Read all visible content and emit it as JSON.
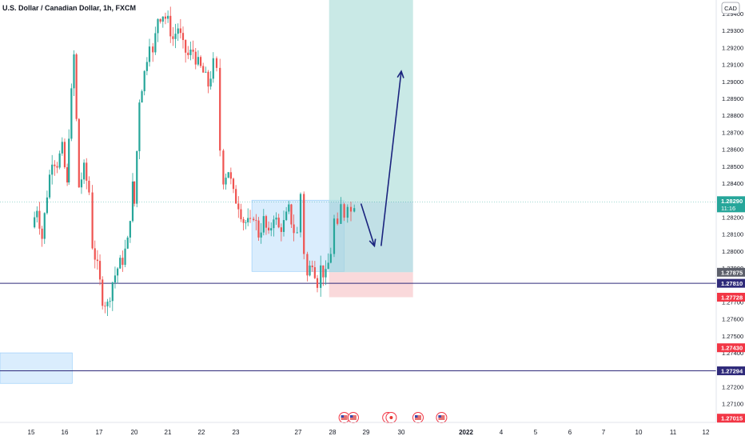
{
  "chart_data": {
    "type": "candlestick",
    "title": "U.S. Dollar / Canadian Dollar, 1h, FXCM",
    "currency": "CAD",
    "y_axis": {
      "ticks": [
        "1.29400",
        "1.29300",
        "1.29200",
        "1.29100",
        "1.29000",
        "1.28900",
        "1.28800",
        "1.28700",
        "1.28600",
        "1.28500",
        "1.28400",
        "1.28300",
        "1.28200",
        "1.28100",
        "1.28000",
        "1.27900",
        "1.27800",
        "1.27700",
        "1.27600",
        "1.27500",
        "1.27400",
        "1.27300",
        "1.27200",
        "1.27100",
        "1.27000"
      ],
      "range": [
        1.2699,
        1.2948
      ]
    },
    "x_axis": {
      "labels": [
        "15",
        "16",
        "17",
        "20",
        "21",
        "22",
        "23",
        "27",
        "28",
        "29",
        "30",
        "2022",
        "4",
        "5",
        "6",
        "7",
        "10",
        "11",
        "12"
      ],
      "bold": [
        "2022"
      ]
    },
    "price_labels": [
      {
        "value": 1.2829,
        "text": "1.28290",
        "sub": "11:16",
        "color": "#26a69a"
      },
      {
        "value": 1.27875,
        "text": "1.27875",
        "color": "#5d606b"
      },
      {
        "value": 1.2781,
        "text": "1.27810",
        "color": "#2f2a7a"
      },
      {
        "value": 1.27728,
        "text": "1.27728",
        "color": "#f23645"
      },
      {
        "value": 1.2743,
        "text": "1.27430",
        "color": "#f23645"
      },
      {
        "value": 1.27294,
        "text": "1.27294",
        "color": "#2f2a7a"
      },
      {
        "value": 1.27015,
        "text": "1.27015",
        "color": "#f23645"
      }
    ],
    "horizontal_lines": [
      {
        "value": 1.2781,
        "color": "#2f2a7a"
      },
      {
        "value": 1.27294,
        "color": "#2f2a7a"
      }
    ],
    "zones": [
      {
        "kind": "support",
        "x_from": 0,
        "x_to": 1.2,
        "y_from": 1.2722,
        "y_to": 1.274,
        "color": "#bbdefb"
      },
      {
        "kind": "range",
        "x_from": 6.55,
        "x_to": 9.3,
        "y_from": 1.2788,
        "y_to": 1.283,
        "color": "#bbdefb"
      },
      {
        "kind": "target",
        "x_from": 8.85,
        "x_to": 11.35,
        "y_from": 1.2829,
        "y_to": 1.2948,
        "color": "#b2dfdb"
      },
      {
        "kind": "entry",
        "x_from": 8.85,
        "x_to": 11.35,
        "y_from": 1.27875,
        "y_to": 1.2829,
        "color": "#a7d3dc"
      },
      {
        "kind": "stop",
        "x_from": 8.85,
        "x_to": 11.35,
        "y_from": 1.27728,
        "y_to": 1.27875,
        "color": "#f8c9cc"
      }
    ],
    "projection_arrows": [
      {
        "from": [
          9.8,
          1.2828
        ],
        "to": [
          10.2,
          1.2803
        ]
      },
      {
        "from": [
          10.4,
          1.2803
        ],
        "to": [
          11.0,
          1.2906
        ]
      }
    ],
    "event_markers": [
      {
        "x": 9.3,
        "icon": "us-flag-icon"
      },
      {
        "x": 9.57,
        "icon": "us-flag-icon"
      },
      {
        "x": 10.6,
        "icon": "ca-flag-icon"
      },
      {
        "x": 10.7,
        "icon": "ca-flag-icon"
      },
      {
        "x": 11.5,
        "icon": "us-flag-icon"
      },
      {
        "x": 12.2,
        "icon": "us-flag-icon"
      }
    ],
    "price_path": [
      [
        0.0,
        1.2814
      ],
      [
        0.15,
        1.2826
      ],
      [
        0.3,
        1.2808
      ],
      [
        0.45,
        1.2834
      ],
      [
        0.6,
        1.2855
      ],
      [
        0.75,
        1.2852
      ],
      [
        0.9,
        1.286
      ],
      [
        1.05,
        1.2838
      ],
      [
        1.1,
        1.287
      ],
      [
        1.25,
        1.2915
      ],
      [
        1.4,
        1.2838
      ],
      [
        1.55,
        1.2848
      ],
      [
        1.7,
        1.2835
      ],
      [
        1.8,
        1.2804
      ],
      [
        1.95,
        1.279
      ],
      [
        2.1,
        1.2772
      ],
      [
        2.25,
        1.2768
      ],
      [
        2.4,
        1.2782
      ],
      [
        2.55,
        1.279
      ],
      [
        2.7,
        1.2795
      ],
      [
        2.85,
        1.2805
      ],
      [
        3.0,
        1.2838
      ],
      [
        3.05,
        1.2828
      ],
      [
        3.2,
        1.289
      ],
      [
        3.35,
        1.2905
      ],
      [
        3.5,
        1.2925
      ],
      [
        3.6,
        1.2915
      ],
      [
        3.75,
        1.2938
      ],
      [
        3.9,
        1.294
      ],
      [
        4.05,
        1.2935
      ],
      [
        4.2,
        1.2925
      ],
      [
        4.35,
        1.2932
      ],
      [
        4.5,
        1.292
      ],
      [
        4.65,
        1.2915
      ],
      [
        4.8,
        1.2918
      ],
      [
        4.95,
        1.291
      ],
      [
        5.1,
        1.2905
      ],
      [
        5.25,
        1.2898
      ],
      [
        5.4,
        1.291
      ],
      [
        5.5,
        1.2905
      ],
      [
        5.6,
        1.286
      ],
      [
        5.7,
        1.2843
      ],
      [
        5.85,
        1.2848
      ],
      [
        6.0,
        1.2833
      ],
      [
        6.15,
        1.2828
      ],
      [
        6.3,
        1.2818
      ],
      [
        6.5,
        1.2815
      ],
      [
        6.6,
        1.2822
      ],
      [
        6.75,
        1.281
      ],
      [
        6.9,
        1.2818
      ],
      [
        7.05,
        1.2808
      ],
      [
        7.2,
        1.2822
      ],
      [
        7.35,
        1.2813
      ],
      [
        7.5,
        1.2816
      ],
      [
        7.65,
        1.2824
      ],
      [
        7.8,
        1.2812
      ],
      [
        7.9,
        1.281
      ],
      [
        8.0,
        1.2834
      ],
      [
        8.1,
        1.28
      ],
      [
        8.2,
        1.2785
      ],
      [
        8.35,
        1.2795
      ],
      [
        8.5,
        1.2782
      ],
      [
        8.6,
        1.279
      ],
      [
        8.75,
        1.2785
      ],
      [
        8.9,
        1.28
      ],
      [
        9.0,
        1.2818
      ],
      [
        9.1,
        1.2812
      ],
      [
        9.2,
        1.2826
      ],
      [
        9.3,
        1.2822
      ],
      [
        9.4,
        1.283
      ],
      [
        9.5,
        1.2823
      ],
      [
        9.6,
        1.2829
      ]
    ]
  }
}
